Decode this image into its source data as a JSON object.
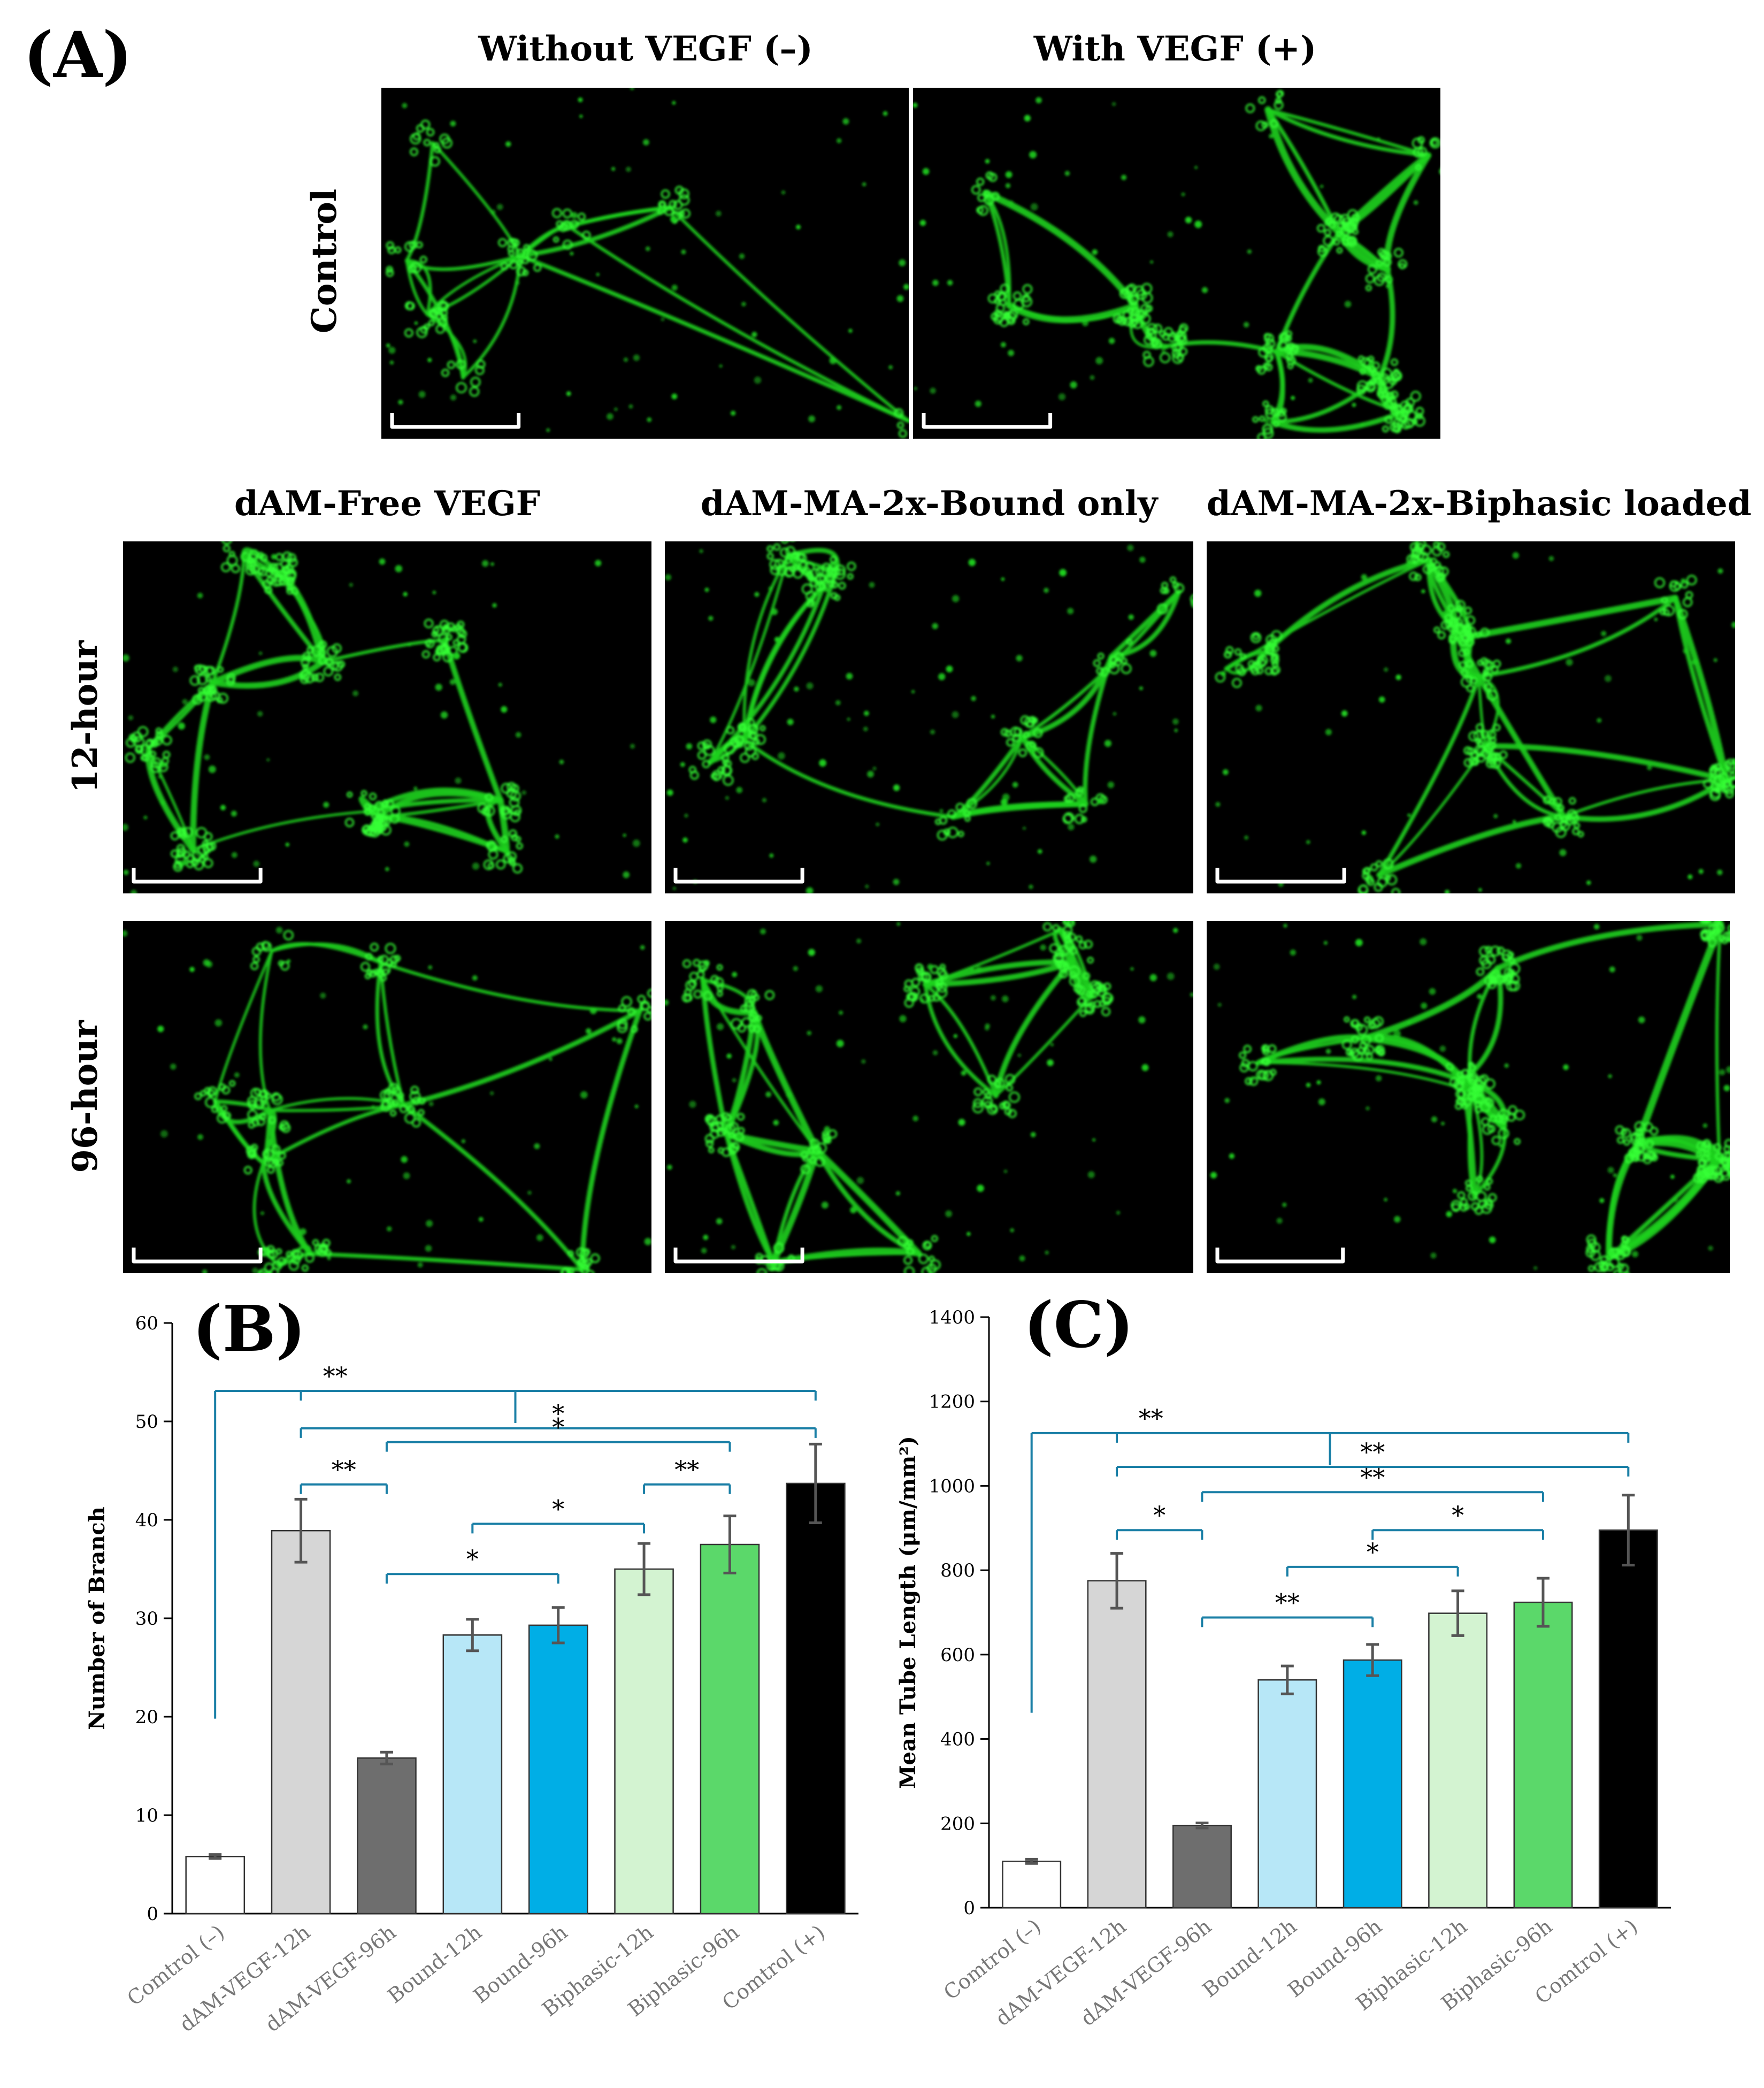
{
  "panel_a": {
    "label": "(A)",
    "control_titles": [
      "Without VEGF (–)",
      "With VEGF (+)"
    ],
    "control_row_label": "Control",
    "group_titles": [
      "dAM-Free VEGF",
      "dAM-MA-2x-Bound  only",
      "dAM-MA-2x-Biphasic  loaded"
    ],
    "time_row_labels": [
      "12-hour",
      "96-hour"
    ],
    "image_colors": {
      "background": "#000000",
      "network": "#1fd11f",
      "glow": "#35ff35"
    }
  },
  "chart_data": [
    {
      "type": "bar",
      "panel_label": "(B)",
      "ylabel": "Number of Branch",
      "ylim": [
        0,
        60
      ],
      "yticks": [
        0,
        10,
        20,
        30,
        40,
        50,
        60
      ],
      "categories": [
        "Comtrol (–)",
        "dAM-VEGF-12h",
        "dAM-VEGF-96h",
        "Bound-12h",
        "Bound-96h",
        "Biphasic-12h",
        "Biphasic-96h",
        "Comtrol (+)"
      ],
      "values": [
        5.8,
        38.9,
        15.8,
        28.3,
        29.3,
        35.0,
        37.5,
        43.7
      ],
      "errors": [
        0.2,
        3.2,
        0.6,
        1.6,
        1.8,
        2.6,
        2.9,
        4.0
      ],
      "colors": [
        "#ffffff",
        "#d6d6d6",
        "#6e6e6e",
        "#b7e7f7",
        "#00aee6",
        "#d3f3d1",
        "#5bd86a",
        "#000000"
      ],
      "significance": [
        {
          "from": [
            0
          ],
          "to": [
            1,
            7
          ],
          "label": "**",
          "y": 53.1
        },
        {
          "from": [
            1
          ],
          "to": [
            7
          ],
          "label": "*",
          "y": 49.3
        },
        {
          "from": [
            1
          ],
          "to": [
            2
          ],
          "label": "**",
          "y": 43.6
        },
        {
          "from": [
            2
          ],
          "to": [
            6
          ],
          "label": "*",
          "y": 47.9
        },
        {
          "from": [
            5
          ],
          "to": [
            6
          ],
          "label": "**",
          "y": 43.6
        },
        {
          "from": [
            3
          ],
          "to": [
            5
          ],
          "label": "*",
          "y": 39.6
        },
        {
          "from": [
            2
          ],
          "to": [
            4
          ],
          "label": "*",
          "y": 34.5
        }
      ]
    },
    {
      "type": "bar",
      "panel_label": "(C)",
      "ylabel": "Mean Tube Length (μm/mm²)",
      "ylim": [
        0,
        1400
      ],
      "yticks": [
        0,
        200,
        400,
        600,
        800,
        1000,
        1200,
        1400
      ],
      "categories": [
        "Comtrol (–)",
        "dAM-VEGF-12h",
        "dAM-VEGF-96h",
        "Bound-12h",
        "Bound-96h",
        "Biphasic-12h",
        "Biphasic-96h",
        "Comtrol (+)"
      ],
      "values": [
        110,
        775,
        195,
        540,
        587,
        698,
        724,
        895
      ],
      "errors": [
        5,
        65,
        6,
        33,
        37,
        53,
        57,
        83
      ],
      "colors": [
        "#ffffff",
        "#d6d6d6",
        "#6e6e6e",
        "#b7e7f7",
        "#00aee6",
        "#d3f3d1",
        "#5bd86a",
        "#000000"
      ],
      "significance": [
        {
          "from": [
            0
          ],
          "to": [
            1,
            7
          ],
          "label": "**",
          "y": 1125
        },
        {
          "from": [
            1
          ],
          "to": [
            7
          ],
          "label": "**",
          "y": 1045
        },
        {
          "from": [
            1
          ],
          "to": [
            2
          ],
          "label": "*",
          "y": 895
        },
        {
          "from": [
            2
          ],
          "to": [
            6
          ],
          "label": "**",
          "y": 985
        },
        {
          "from": [
            4
          ],
          "to": [
            6
          ],
          "label": "*",
          "y": 895
        },
        {
          "from": [
            3
          ],
          "to": [
            5
          ],
          "label": "*",
          "y": 808
        },
        {
          "from": [
            2
          ],
          "to": [
            4
          ],
          "label": "**",
          "y": 688
        }
      ]
    }
  ]
}
